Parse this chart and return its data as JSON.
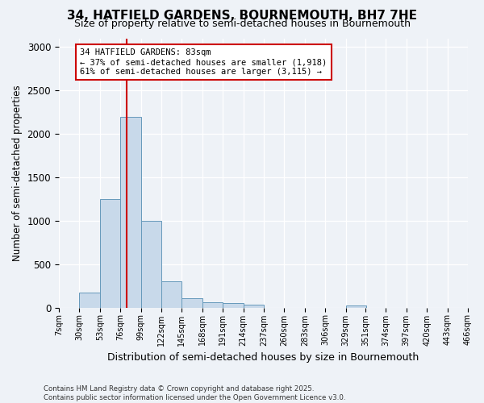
{
  "title": "34, HATFIELD GARDENS, BOURNEMOUTH, BH7 7HE",
  "subtitle": "Size of property relative to semi-detached houses in Bournemouth",
  "xlabel": "Distribution of semi-detached houses by size in Bournemouth",
  "ylabel": "Number of semi-detached properties",
  "footnote": "Contains HM Land Registry data © Crown copyright and database right 2025.\nContains public sector information licensed under the Open Government Licence v3.0.",
  "bin_edges": [
    7,
    30,
    53,
    76,
    99,
    122,
    145,
    168,
    191,
    214,
    237,
    260,
    283,
    306,
    329,
    351,
    374,
    397,
    420,
    443,
    466
  ],
  "bar_heights": [
    0,
    175,
    1250,
    2200,
    1000,
    300,
    110,
    60,
    55,
    30,
    0,
    0,
    0,
    0,
    25,
    0,
    0,
    0,
    0,
    0
  ],
  "bar_color": "#c8d9ea",
  "bar_edgecolor": "#6699bb",
  "property_size": 83,
  "redline_color": "#cc0000",
  "ylim": [
    0,
    3100
  ],
  "annotation_text": "34 HATFIELD GARDENS: 83sqm\n← 37% of semi-detached houses are smaller (1,918)\n61% of semi-detached houses are larger (3,115) →",
  "annotation_box_color": "#ffffff",
  "annotation_box_edgecolor": "#cc0000",
  "background_color": "#eef2f7",
  "grid_color": "#ffffff",
  "tick_labels": [
    "7sqm",
    "30sqm",
    "53sqm",
    "76sqm",
    "99sqm",
    "122sqm",
    "145sqm",
    "168sqm",
    "191sqm",
    "214sqm",
    "237sqm",
    "260sqm",
    "283sqm",
    "306sqm",
    "329sqm",
    "351sqm",
    "374sqm",
    "397sqm",
    "420sqm",
    "443sqm",
    "466sqm"
  ]
}
